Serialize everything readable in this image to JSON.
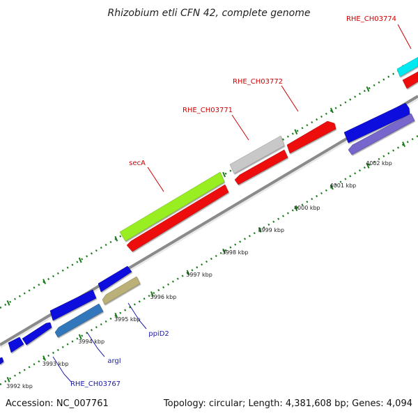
{
  "title": "Rhizobium etli CFN 42, complete genome",
  "footer": {
    "accession": "Accession: NC_007761",
    "summary": "Topology: circular; Length: 4,381,608 bp; Genes: 4,094"
  },
  "colors": {
    "backbone": "#8a8a8a",
    "tick": "#1a7a1a",
    "label_red": "#cc0000",
    "label_blue": "#1a1aaa"
  },
  "axis_labels": [
    "3992 kbp",
    "3993 kbp",
    "3994 kbp",
    "3995 kbp",
    "3996 kbp",
    "3997 kbp",
    "3998 kbp",
    "3999 kbp",
    "4000 kbp",
    "4001 kbp",
    "4002 kbp"
  ],
  "gene_labels": {
    "forward": [
      "RHE_CH03774",
      "RHE_CH03772",
      "RHE_CH03771",
      "secA"
    ],
    "reverse": [
      "ppiD2",
      "argI",
      "RHE_CH03767"
    ]
  },
  "feature_colors": [
    "blue",
    "red",
    "lime",
    "silver",
    "cyan",
    "slate-blue",
    "tan",
    "medium-purple"
  ]
}
